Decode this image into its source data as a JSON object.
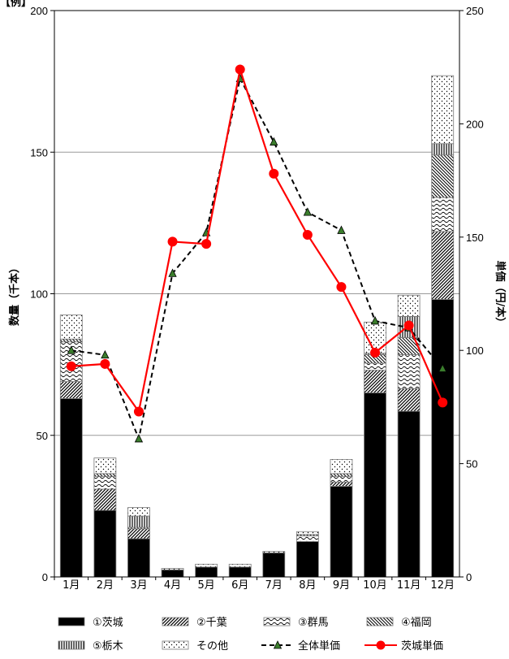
{
  "corner_label": "【例】",
  "chart_data": {
    "type": "bar",
    "categories": [
      "1月",
      "2月",
      "3月",
      "4月",
      "5月",
      "6月",
      "7月",
      "8月",
      "9月",
      "10月",
      "11月",
      "12月"
    ],
    "bar_series": [
      {
        "name": "①茨城",
        "pattern": "solid",
        "values": [
          63,
          23.5,
          13.5,
          2.5,
          3.5,
          3.5,
          8.5,
          12.5,
          32,
          65,
          58.5,
          98
        ]
      },
      {
        "name": "②千葉",
        "pattern": "diag",
        "values": [
          6,
          7.5,
          3.5,
          0,
          0,
          0,
          0,
          0,
          1.5,
          8,
          8,
          24
        ]
      },
      {
        "name": "③群馬",
        "pattern": "wave",
        "values": [
          14,
          4.5,
          0,
          0,
          0,
          0,
          0,
          2,
          2,
          2.5,
          12,
          12
        ]
      },
      {
        "name": "④福岡",
        "pattern": "rdiag",
        "values": [
          1,
          1,
          0.5,
          0,
          0,
          0,
          0,
          0.5,
          1,
          3,
          6,
          15
        ]
      },
      {
        "name": "⑤栃木",
        "pattern": "vert",
        "values": [
          0,
          0,
          4,
          0,
          0,
          0,
          0,
          0,
          0,
          0.5,
          7.5,
          4
        ]
      },
      {
        "name": "その他",
        "pattern": "dots",
        "values": [
          8.5,
          5.5,
          3,
          0.5,
          1,
          1,
          0.5,
          1,
          5,
          11,
          7.5,
          24
        ]
      }
    ],
    "line_series": [
      {
        "name": "全体単価",
        "style": "dashed-triangle",
        "color": "#000000",
        "marker_color": "#3a7d2c",
        "values": [
          100,
          98,
          61,
          134,
          152,
          220,
          192,
          161,
          153,
          113,
          110,
          92
        ]
      },
      {
        "name": "茨城単価",
        "style": "solid-circle",
        "color": "#ff0000",
        "values": [
          93,
          94,
          73,
          148,
          147,
          224,
          178,
          151,
          128,
          99,
          111,
          77
        ]
      }
    ],
    "ylabel_left": "数量（千本）",
    "ylabel_right": "単価（円/本）",
    "ylim_left": [
      0,
      200
    ],
    "ylim_right": [
      0,
      250
    ],
    "yticks_left": [
      "0",
      "50",
      "100",
      "150",
      "200"
    ],
    "yticks_right": [
      "0",
      "50",
      "100",
      "150",
      "200",
      "250"
    ],
    "grid": true,
    "legend_position": "bottom"
  }
}
